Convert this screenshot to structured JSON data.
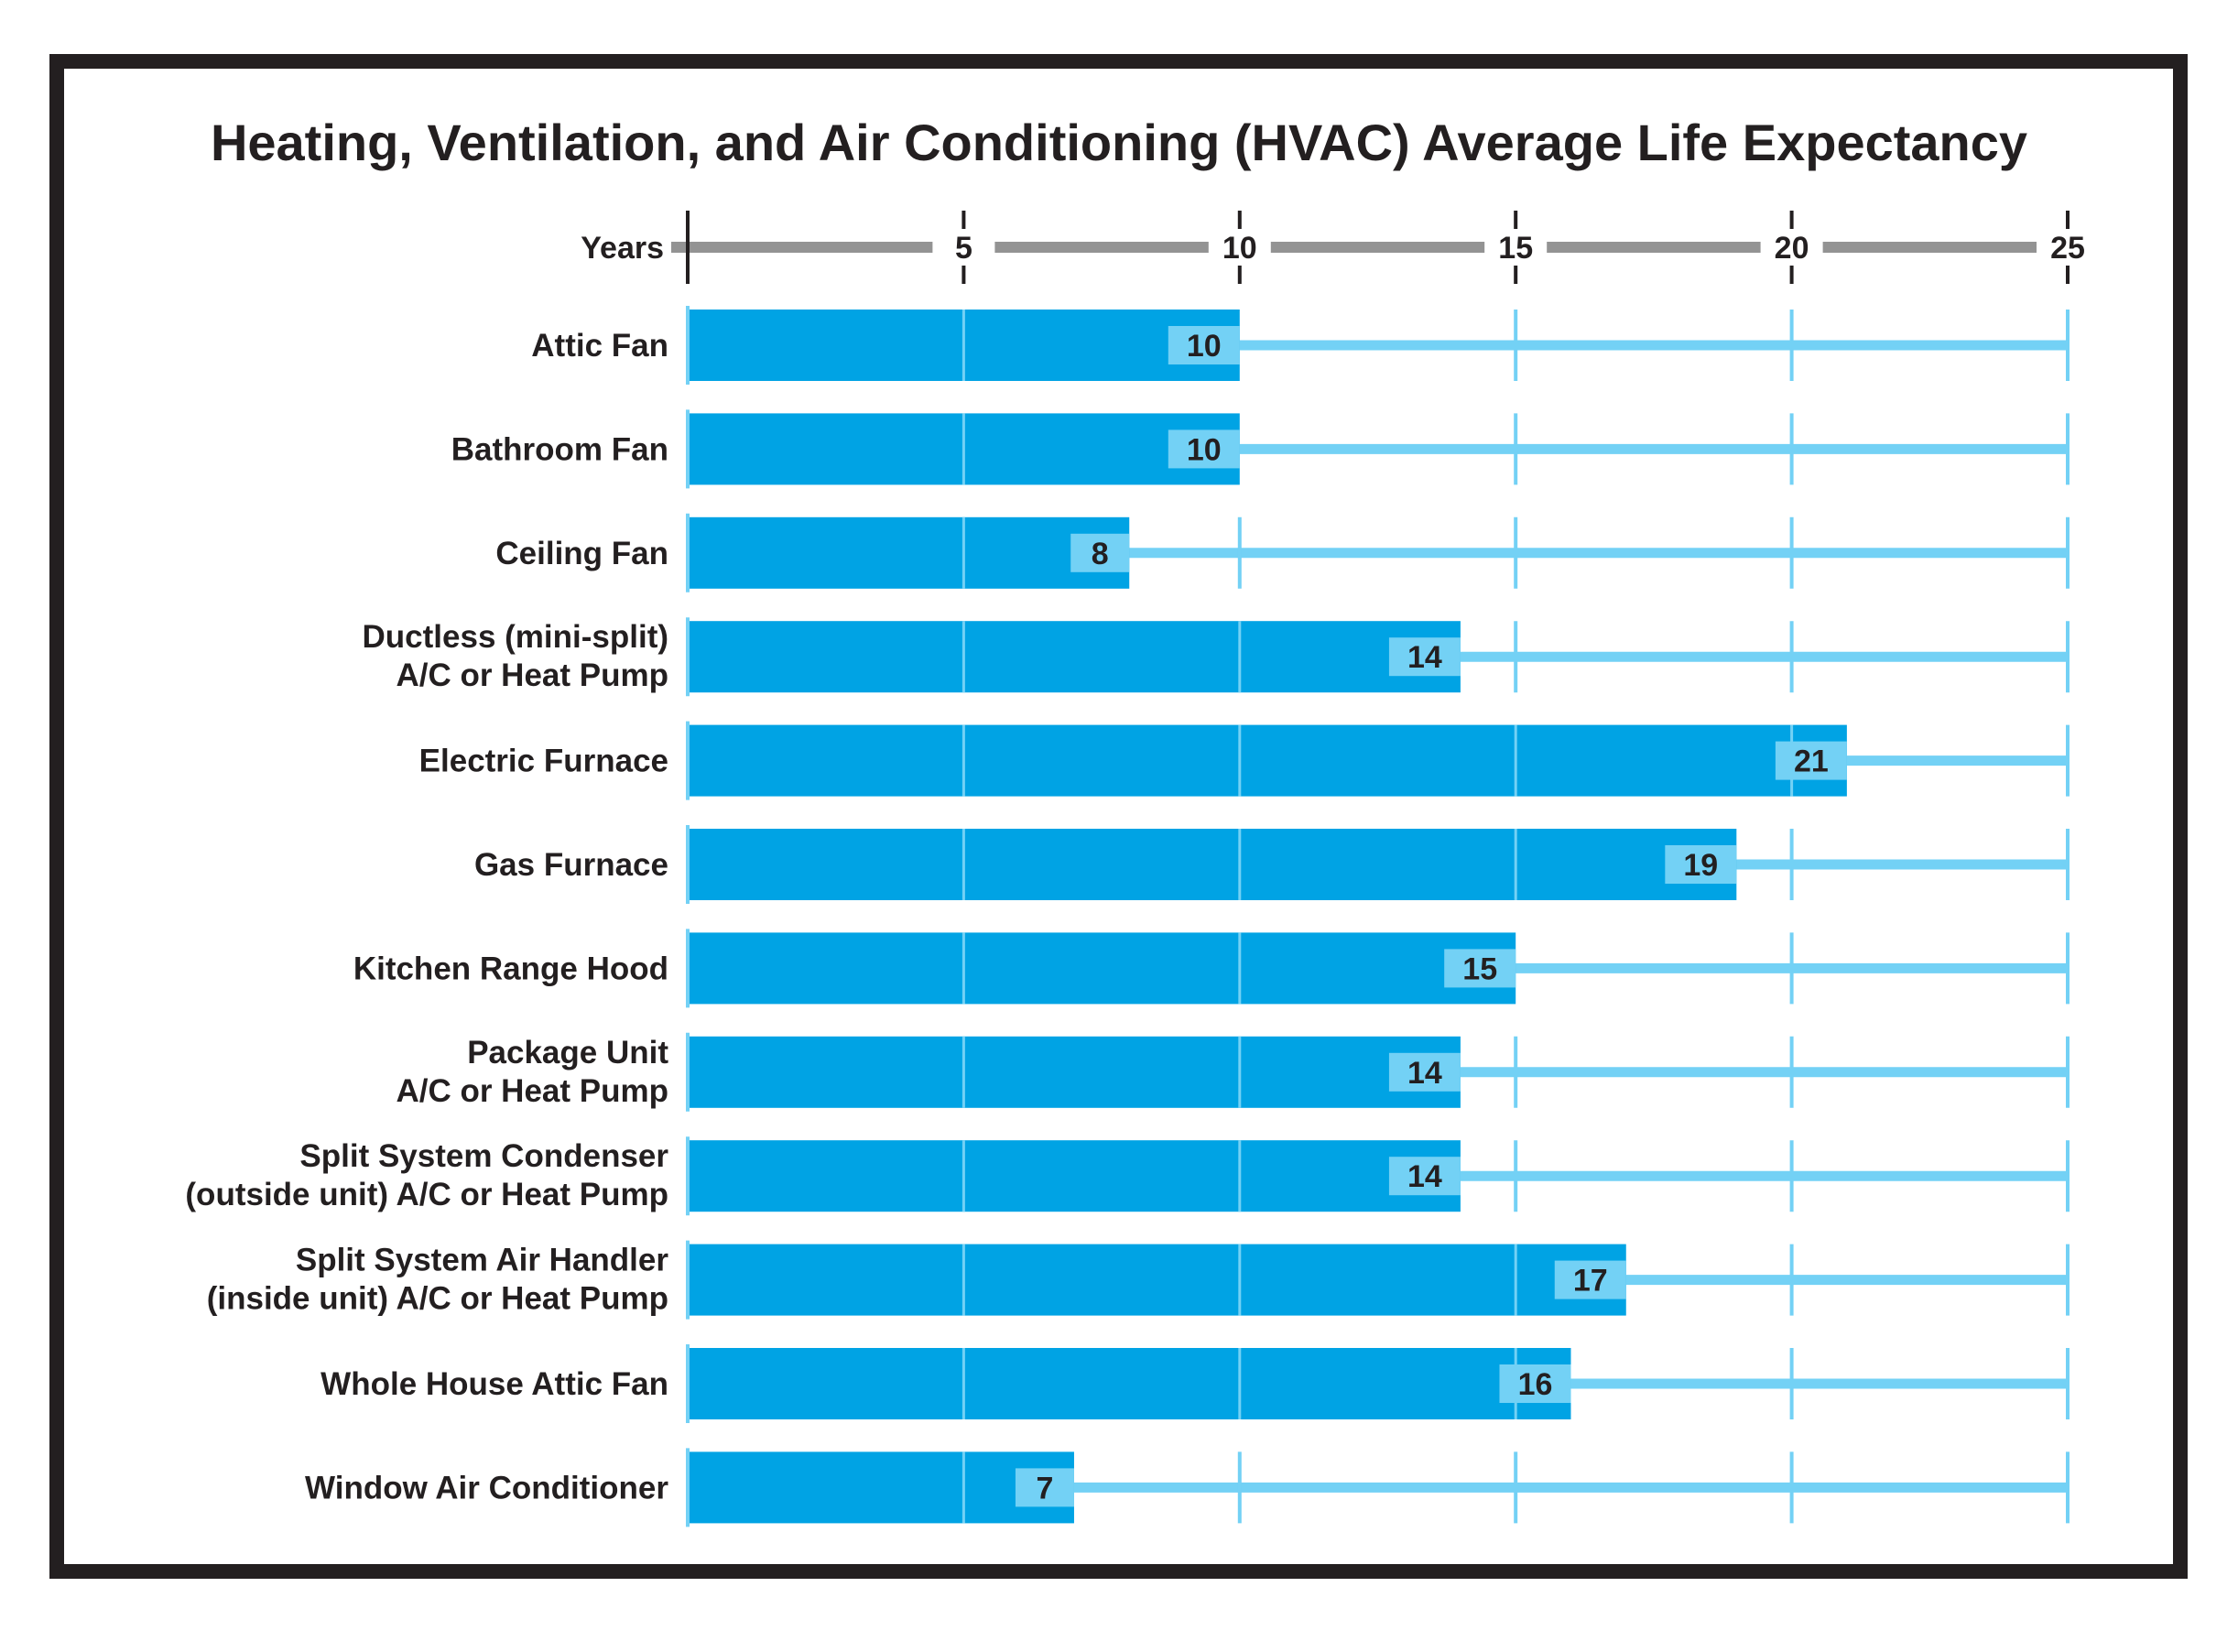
{
  "chart_data": {
    "type": "bar",
    "orientation": "horizontal",
    "title": "Heating, Ventilation, and Air Conditioning (HVAC) Average Life Expectancy",
    "xlabel": "Years",
    "xlim": [
      0,
      25
    ],
    "xticks": [
      5,
      10,
      15,
      20,
      25
    ],
    "categories": [
      [
        "Attic Fan"
      ],
      [
        "Bathroom Fan"
      ],
      [
        "Ceiling Fan"
      ],
      [
        "Ductless (mini-split)",
        "A/C or Heat Pump"
      ],
      [
        "Electric Furnace"
      ],
      [
        "Gas Furnace"
      ],
      [
        "Kitchen Range Hood"
      ],
      [
        "Package Unit",
        "A/C or Heat Pump"
      ],
      [
        "Split System Condenser",
        "(outside unit) A/C or Heat Pump"
      ],
      [
        "Split System Air Handler",
        "(inside unit) A/C or Heat Pump"
      ],
      [
        "Whole House Attic Fan"
      ],
      [
        "Window Air Conditioner"
      ]
    ],
    "values": [
      10,
      10,
      8,
      14,
      21,
      19,
      15,
      14,
      14,
      17,
      16,
      7
    ],
    "grid": true,
    "colors": {
      "bar": "#00a3e4",
      "track": "#73d1f5",
      "label_box": "#73d1f5",
      "axis": "#939393",
      "text": "#231f20",
      "frame": "#231f20"
    }
  }
}
